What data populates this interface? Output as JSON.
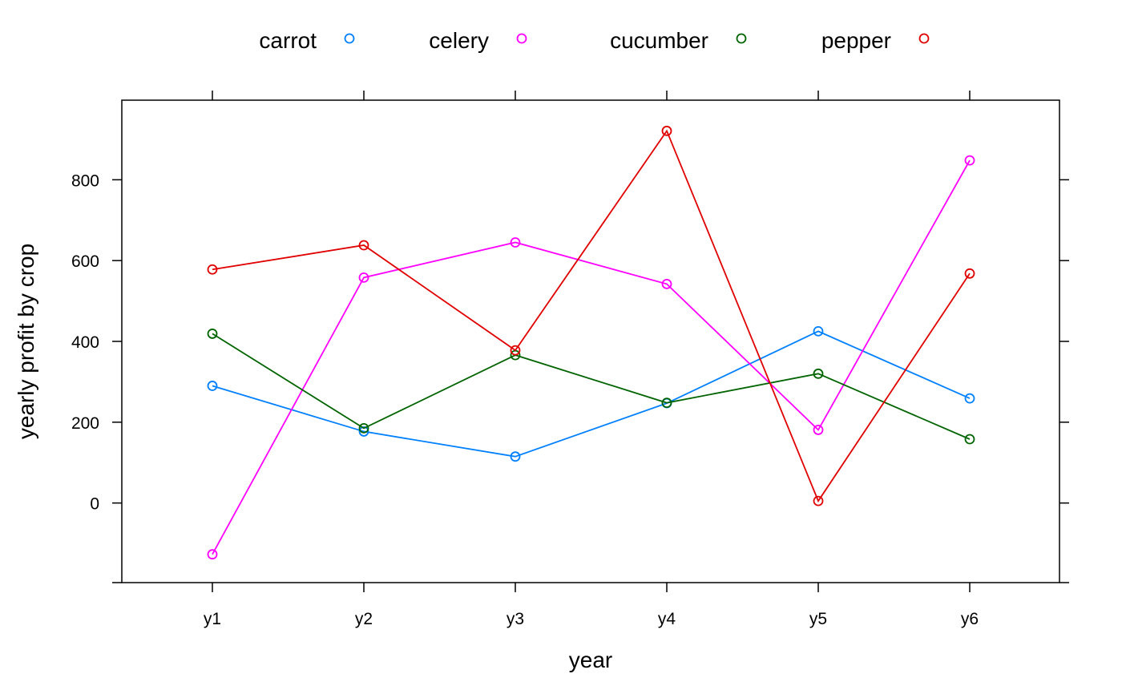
{
  "chart_data": {
    "type": "line",
    "categories": [
      "y1",
      "y2",
      "y3",
      "y4",
      "y5",
      "y6"
    ],
    "series": [
      {
        "name": "carrot",
        "color": "#0080ff",
        "values": [
          290,
          177,
          115,
          247,
          425,
          259
        ]
      },
      {
        "name": "celery",
        "color": "#ff00ff",
        "values": [
          -127,
          558,
          645,
          542,
          181,
          848
        ]
      },
      {
        "name": "cucumber",
        "color": "#006400",
        "values": [
          419,
          185,
          366,
          248,
          320,
          158
        ]
      },
      {
        "name": "pepper",
        "color": "#e00000",
        "values": [
          578,
          638,
          378,
          921,
          5,
          568
        ]
      }
    ],
    "xlabel": "year",
    "ylabel": "yearly profit by crop",
    "ylim": [
      -197,
      997
    ],
    "yticks": [
      0,
      200,
      400,
      600,
      800
    ],
    "marker": "open-circle",
    "legend_position": "top"
  }
}
